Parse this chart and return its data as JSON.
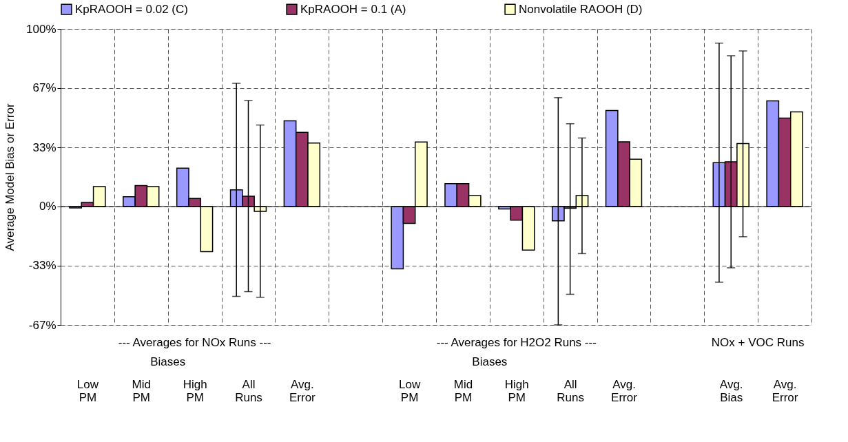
{
  "chart_data": {
    "type": "bar",
    "ylabel": "Average Model Bias or Error",
    "categories": [
      "Low PM",
      "Mid PM",
      "High PM",
      "All Runs",
      "Avg. Error",
      null,
      "Low PM",
      "Mid PM",
      "High PM",
      "All Runs",
      "Avg. Error",
      null,
      "Avg. Bias",
      "Avg. Error"
    ],
    "series": [
      {
        "name": "KpRAOOH = 0.02 (C)",
        "color": "#9999ff",
        "values": [
          -0.8,
          5.5,
          21.6,
          9.4,
          48.3,
          null,
          -35.1,
          12.9,
          -1.4,
          -8.0,
          54.1,
          null,
          24.7,
          59.5
        ],
        "errors": [
          null,
          null,
          null,
          [
            -50.6,
            69.4
          ],
          null,
          null,
          null,
          null,
          null,
          [
            -66.6,
            61.3
          ],
          null,
          null,
          [
            -42.6,
            92.0
          ],
          null
        ]
      },
      {
        "name": "KpRAOOH = 0.1 (A)",
        "color": "#993366",
        "values": [
          2.3,
          11.8,
          4.6,
          5.8,
          41.8,
          null,
          -9.5,
          12.9,
          -7.7,
          -1.0,
          36.4,
          null,
          25.2,
          49.8
        ],
        "errors": [
          null,
          null,
          null,
          [
            -47.9,
            59.7
          ],
          null,
          null,
          null,
          null,
          null,
          [
            -49.4,
            46.6
          ],
          null,
          null,
          [
            -34.5,
            84.9
          ],
          null
        ]
      },
      {
        "name": "Nonvolatile RAOOH (D)",
        "color": "#ffffcc",
        "values": [
          11.2,
          11.2,
          -25.4,
          -2.7,
          35.8,
          null,
          36.3,
          6.2,
          -24.5,
          6.2,
          26.6,
          null,
          35.5,
          53.3
        ],
        "errors": [
          null,
          null,
          null,
          [
            -51.1,
            45.9
          ],
          null,
          null,
          null,
          null,
          null,
          [
            -26.5,
            38.6
          ],
          null,
          null,
          [
            -17.0,
            87.6
          ],
          null
        ]
      }
    ],
    "ylim": [
      -66.667,
      100
    ],
    "yticks": [
      {
        "value": -66.667,
        "label": "-67%"
      },
      {
        "value": -33.333,
        "label": "-33%"
      },
      {
        "value": 0,
        "label": "0%"
      },
      {
        "value": 33.333,
        "label": "33%"
      },
      {
        "value": 66.667,
        "label": "67%"
      },
      {
        "value": 100,
        "label": "100%"
      }
    ],
    "ref_lines": [
      {
        "axis": "y",
        "value": 0,
        "color": "#000000"
      }
    ],
    "annotations": [
      "--- Averages for NOx Runs ---",
      "Biases",
      "--- Averages for H2O2 Runs ---",
      "Biases",
      "NOx + VOC Runs"
    ],
    "grid": true,
    "legend": "top"
  }
}
